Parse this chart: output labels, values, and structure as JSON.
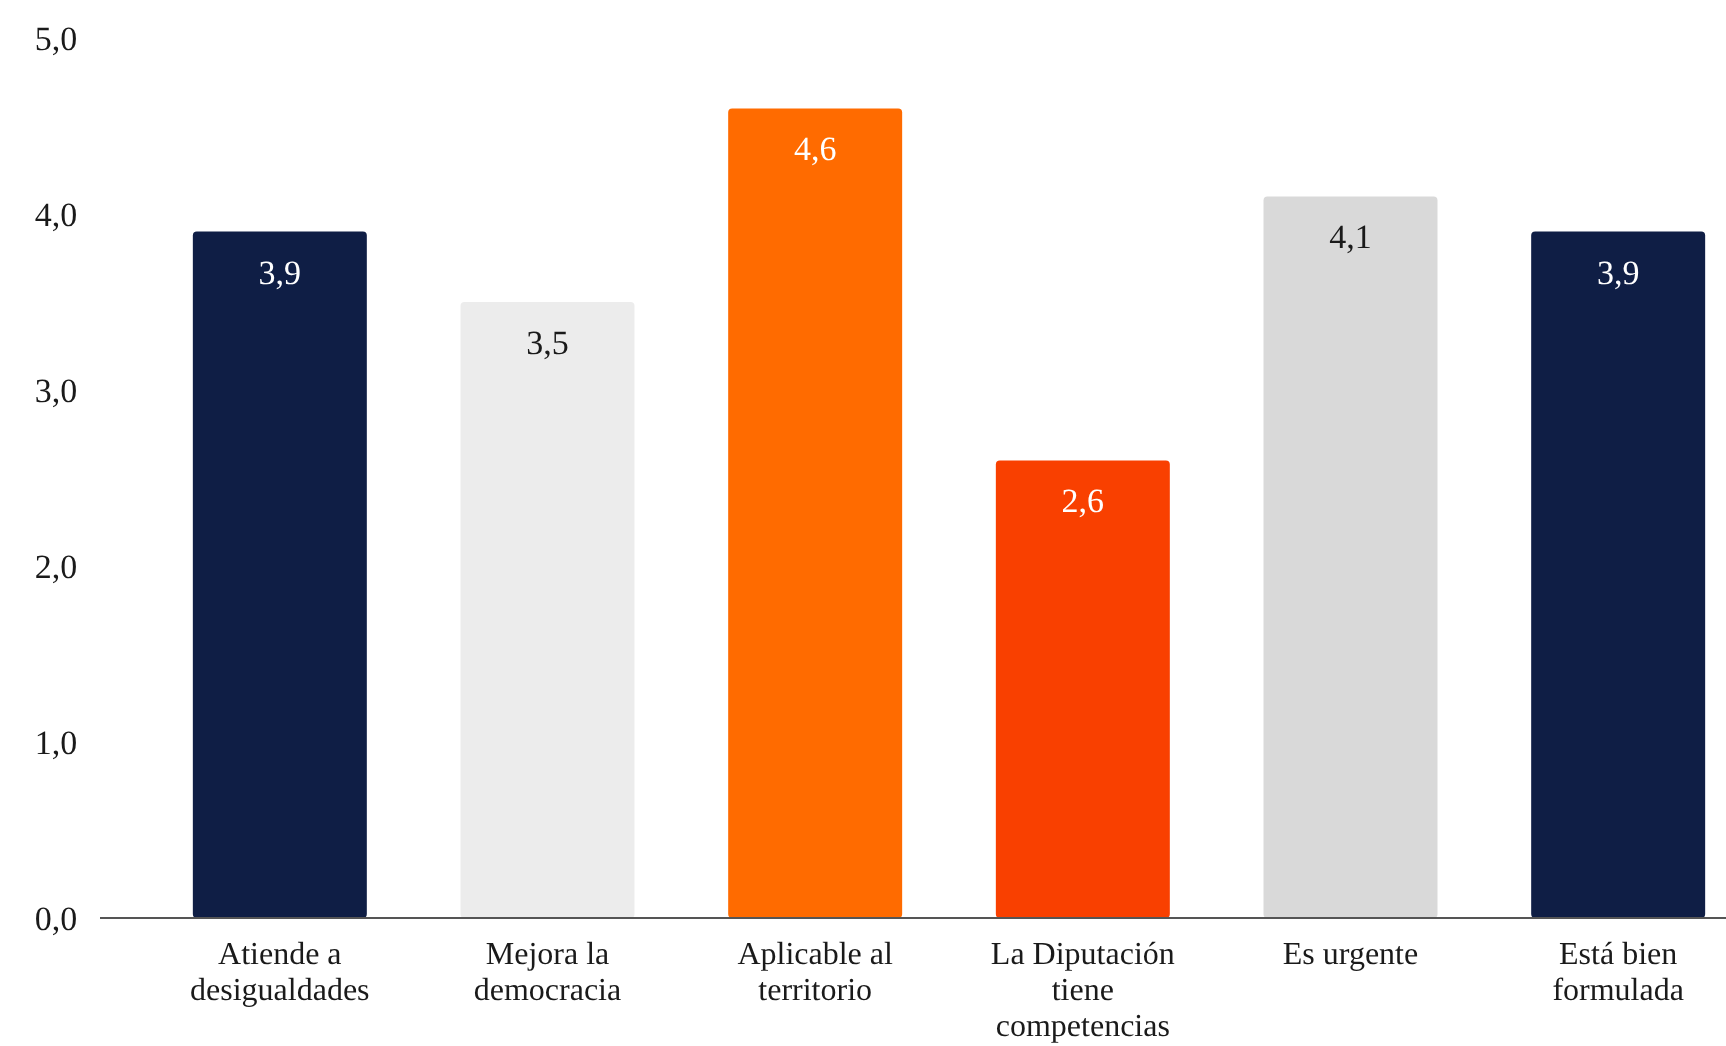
{
  "chart_data": {
    "type": "bar",
    "categories": [
      "Atiende a desigualdades",
      "Mejora la democracia",
      "Aplicable al territorio",
      "La Diputación tiene competencias",
      "Es urgente",
      "Está bien formulada"
    ],
    "values": [
      3.9,
      3.5,
      4.6,
      2.6,
      4.1,
      3.9
    ],
    "colors": [
      "#0f1e45",
      "#ececec",
      "#ff6b00",
      "#f94000",
      "#d9d9d9",
      "#0f1e45"
    ],
    "value_labels": [
      "3,9",
      "3,5",
      "4,6",
      "2,6",
      "4,1",
      "3,9"
    ],
    "ylim": [
      0,
      5
    ],
    "yticks": [
      {
        "value": 0,
        "label": "0,0"
      },
      {
        "value": 1,
        "label": "1,0"
      },
      {
        "value": 2,
        "label": "2,0"
      },
      {
        "value": 3,
        "label": "3,0"
      },
      {
        "value": 4,
        "label": "4,0"
      },
      {
        "value": 5,
        "label": "5,0"
      }
    ],
    "grid": false
  }
}
